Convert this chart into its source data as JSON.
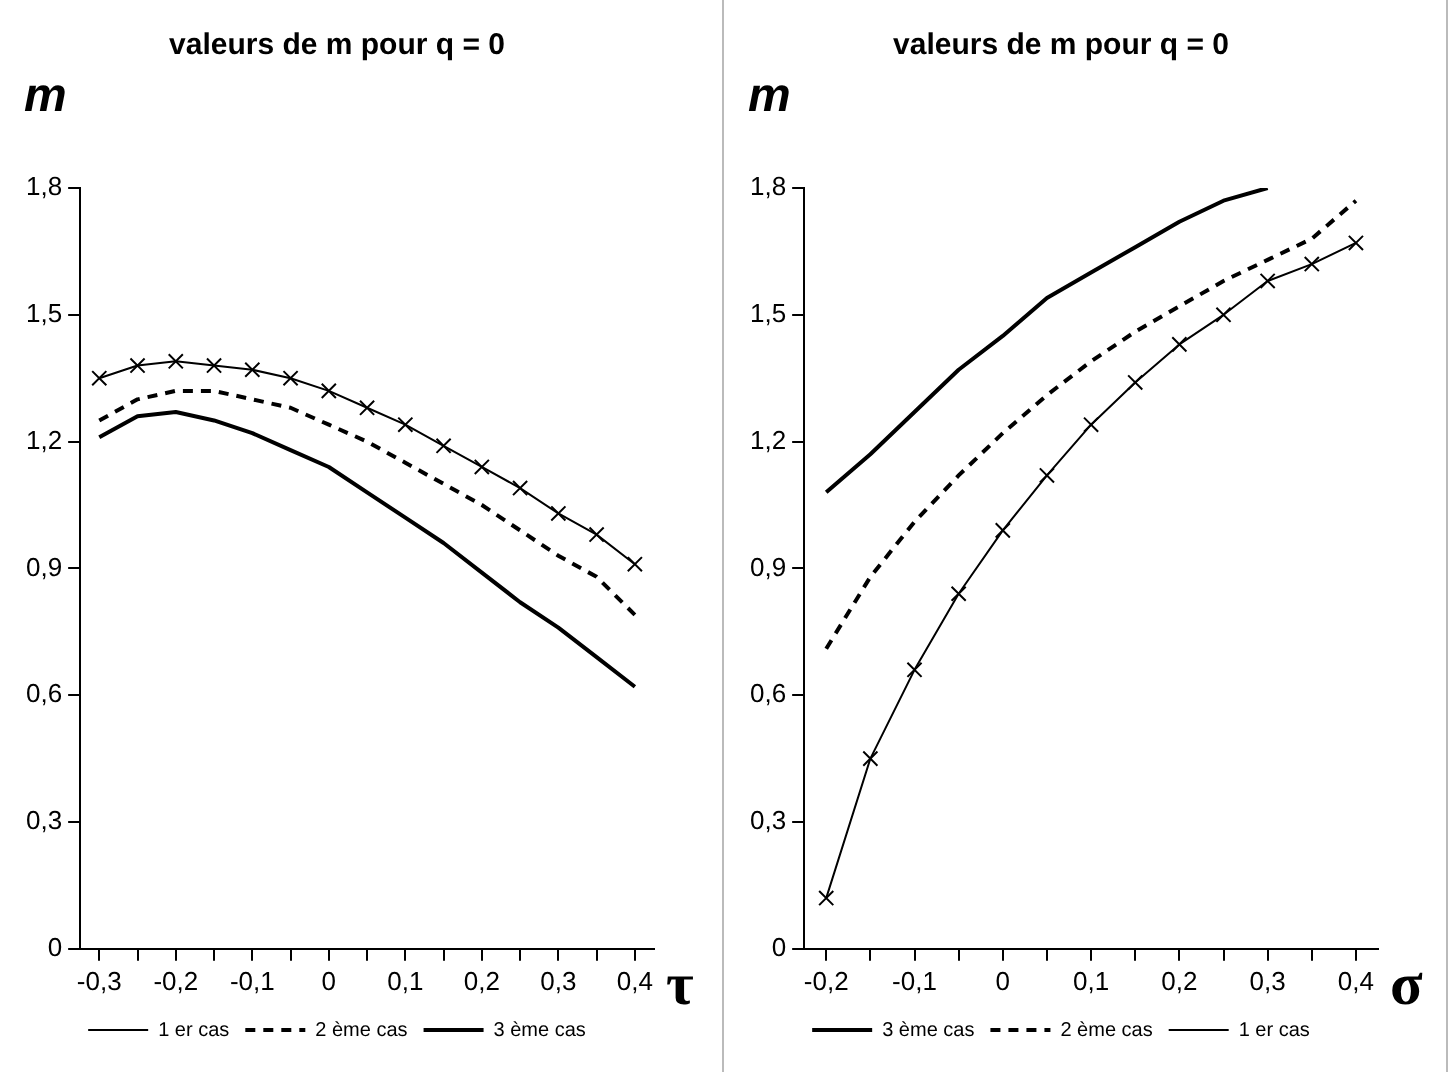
{
  "chart_data": [
    {
      "type": "line",
      "title": "valeurs de m pour q = 0",
      "xlabel": "τ",
      "ylabel": "m",
      "categories": [
        "-0,3",
        null,
        "-0,2",
        null,
        "-0,1",
        null,
        "0",
        null,
        "0,1",
        null,
        "0,2",
        null,
        "0,3",
        null,
        "0,4"
      ],
      "series": [
        {
          "name": "1 er cas",
          "color": "#000000",
          "marker": "cross",
          "line_style": "solid",
          "values": [
            1.35,
            1.38,
            1.39,
            1.38,
            1.37,
            1.35,
            1.32,
            1.28,
            1.24,
            1.19,
            1.14,
            1.09,
            1.03,
            0.98,
            0.91
          ]
        },
        {
          "name": "2 ème cas",
          "color": "#000000",
          "marker": "none",
          "line_style": "dashed",
          "values": [
            1.25,
            1.3,
            1.32,
            1.32,
            1.3,
            1.28,
            1.24,
            1.2,
            1.15,
            1.1,
            1.05,
            0.99,
            0.93,
            0.88,
            0.79
          ]
        },
        {
          "name": "3 ème cas",
          "color": "#000000",
          "marker": "none",
          "line_style": "solid",
          "values": [
            1.21,
            1.26,
            1.27,
            1.25,
            1.22,
            1.18,
            1.14,
            1.08,
            1.02,
            0.96,
            0.89,
            0.82,
            0.76,
            0.69,
            0.62
          ]
        }
      ],
      "ylim": [
        0,
        1.8
      ],
      "yticks": [
        0,
        {
          "value": 0.3,
          "label": "0,3"
        },
        {
          "value": 0.6,
          "label": "0,6"
        },
        {
          "value": 0.9,
          "label": "0,9"
        },
        {
          "value": 1.2,
          "label": "1,2"
        },
        {
          "value": 1.5,
          "label": "1,5"
        },
        {
          "value": 1.8,
          "label": "1,8"
        }
      ],
      "grid": false,
      "legend": "bottom"
    },
    {
      "type": "line",
      "title": "valeurs de m pour q = 0",
      "xlabel": "σ",
      "ylabel": "m",
      "categories": [
        "-0,2",
        null,
        "-0,1",
        null,
        "0",
        null,
        "0,1",
        null,
        "0,2",
        null,
        "0,3",
        null,
        "0,4"
      ],
      "series": [
        {
          "name": "3 ème cas",
          "color": "#000000",
          "marker": "none",
          "line_style": "solid",
          "values": [
            1.08,
            1.17,
            1.27,
            1.37,
            1.45,
            1.54,
            1.6,
            1.66,
            1.72,
            1.77,
            1.8,
            null,
            null
          ]
        },
        {
          "name": "2 ème cas",
          "color": "#000000",
          "marker": "none",
          "line_style": "dashed",
          "values": [
            0.71,
            0.88,
            1.01,
            1.12,
            1.22,
            1.31,
            1.39,
            1.46,
            1.52,
            1.58,
            1.63,
            1.68,
            1.77
          ]
        },
        {
          "name": "1 er cas",
          "color": "#000000",
          "marker": "cross",
          "line_style": "solid",
          "values": [
            0.12,
            0.45,
            0.66,
            0.84,
            0.99,
            1.12,
            1.24,
            1.34,
            1.43,
            1.5,
            1.58,
            1.62,
            1.67
          ]
        }
      ],
      "ylim": [
        0,
        1.8
      ],
      "yticks": [
        0,
        {
          "value": 0.3,
          "label": "0,3"
        },
        {
          "value": 0.6,
          "label": "0,6"
        },
        {
          "value": 0.9,
          "label": "0,9"
        },
        {
          "value": 1.2,
          "label": "1,2"
        },
        {
          "value": 1.5,
          "label": "1,5"
        },
        {
          "value": 1.8,
          "label": "1,8"
        }
      ],
      "grid": false,
      "legend": "bottom"
    }
  ]
}
